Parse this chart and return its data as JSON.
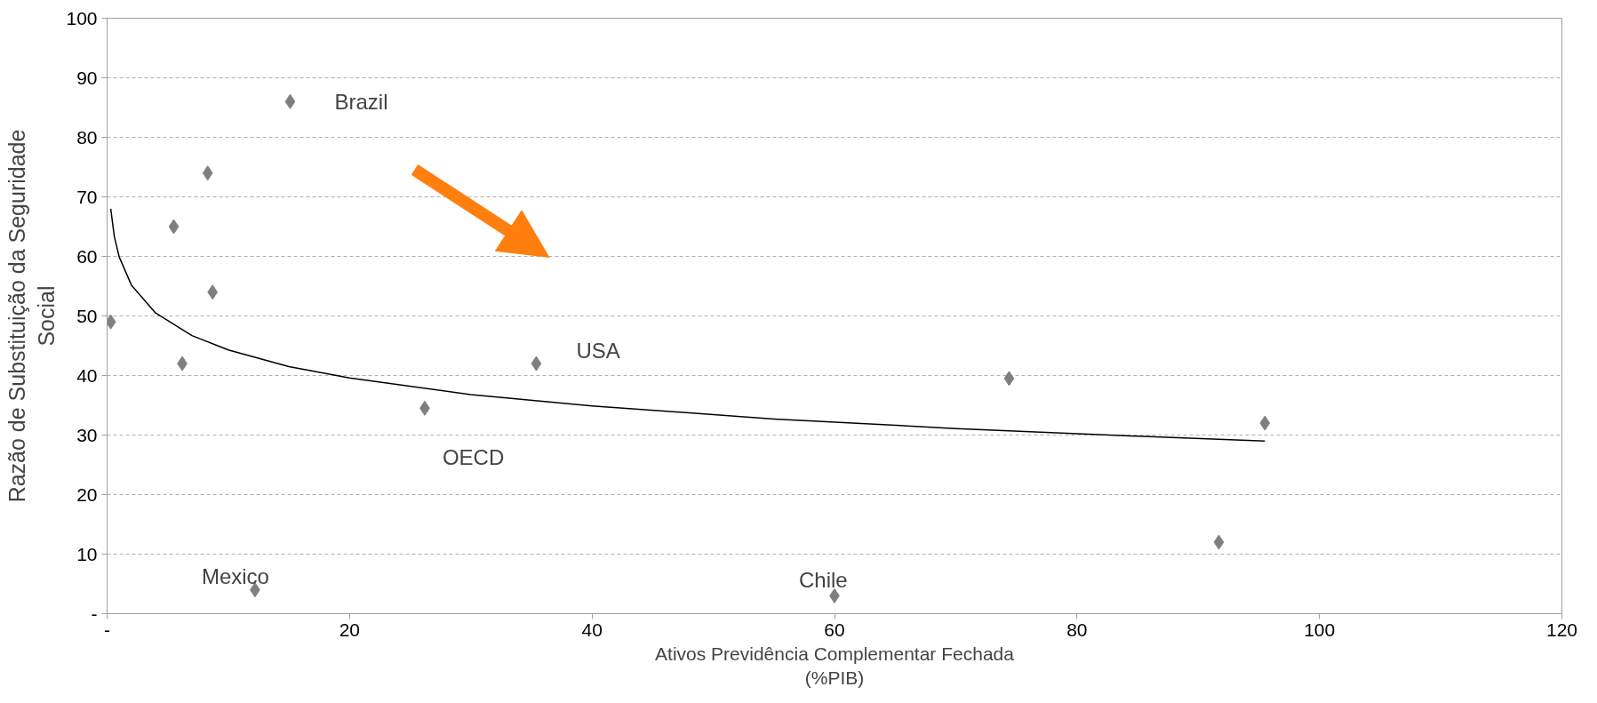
{
  "chart_data": {
    "type": "scatter",
    "xlabel": "Ativos Previdência Complementar Fechada\n(%PIB)",
    "ylabel": "Razão de Substituição da Seguridade\nSocial",
    "xlim": [
      0,
      120
    ],
    "ylim": [
      0,
      100
    ],
    "xticks": [
      {
        "value": 0,
        "label": "-"
      },
      20,
      40,
      60,
      80,
      100,
      120
    ],
    "yticks": [
      {
        "value": 0,
        "label": "-"
      },
      10,
      20,
      30,
      40,
      50,
      60,
      70,
      80,
      90,
      100
    ],
    "grid": "y",
    "series": [
      {
        "marker": "diamond",
        "color": "#7f7f7f",
        "x": [
          0.3,
          5.5,
          8.3,
          8.7,
          6.2,
          12.2,
          15.1,
          26.2,
          35.4,
          60.0,
          74.4,
          91.7,
          95.5
        ],
        "values": [
          49,
          65,
          74,
          54,
          42,
          4,
          86,
          34.5,
          42,
          3,
          39.5,
          12,
          32
        ]
      },
      {
        "type": "line",
        "color": "#000000",
        "x": [
          0.3,
          0.6,
          1,
          2,
          4,
          7,
          10,
          15,
          20,
          30,
          40,
          55,
          70,
          85,
          95.5
        ],
        "values": [
          68,
          63.3,
          59.9,
          55.2,
          50.5,
          46.7,
          44.3,
          41.5,
          39.6,
          36.8,
          34.9,
          32.7,
          31.1,
          29.8,
          29
        ]
      }
    ],
    "annotations": [
      {
        "text": "Brazil",
        "x": 15.1,
        "y": 86
      },
      {
        "text": "USA",
        "x": 35.4,
        "y": 42
      },
      {
        "text": "OECD",
        "x": 26.2,
        "y": 34.5
      },
      {
        "text": "Mexico",
        "x": 12.2,
        "y": 4
      },
      {
        "text": "Chile",
        "x": 60.0,
        "y": 3
      }
    ]
  }
}
